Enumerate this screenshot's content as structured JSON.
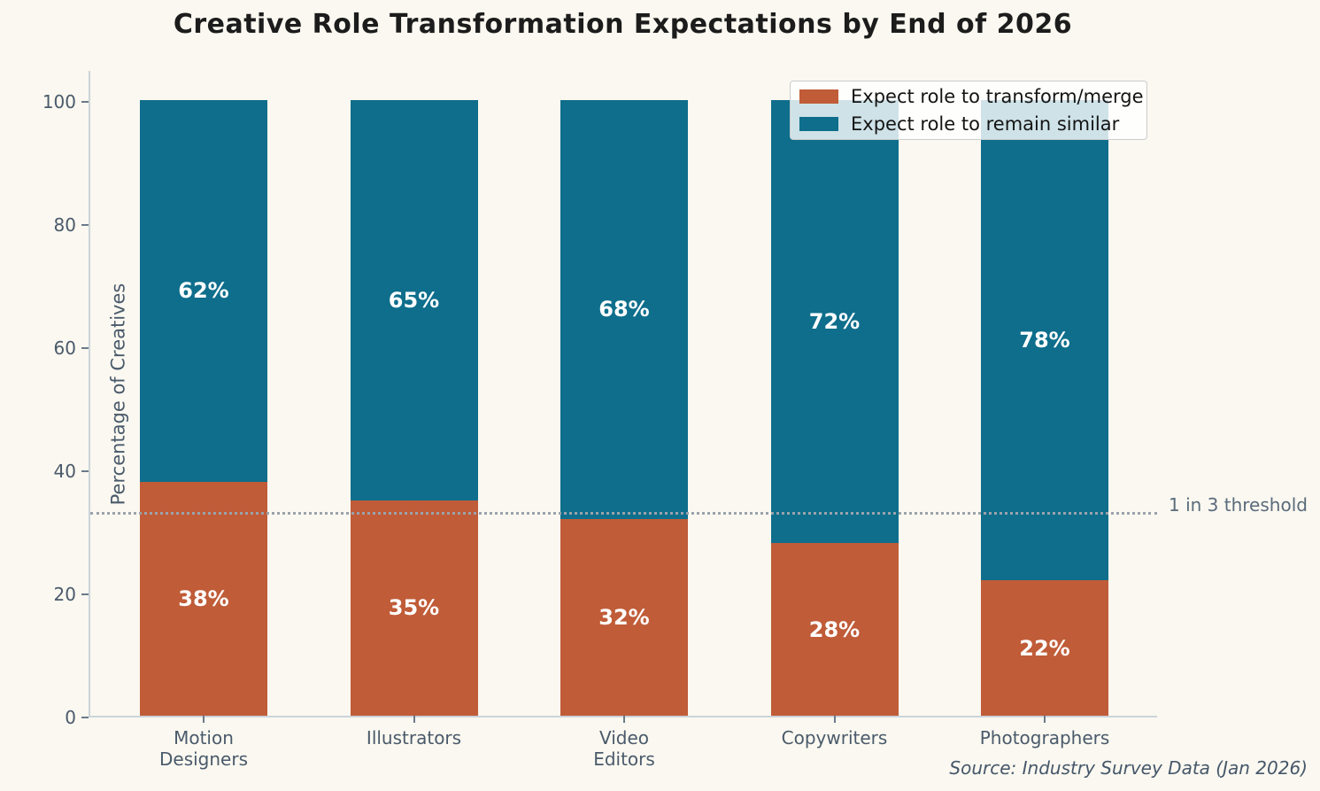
{
  "title": "Creative Role Transformation Expectations by End of 2026",
  "chart_data": {
    "type": "bar",
    "stacked": true,
    "title": "Creative Role Transformation Expectations by End of 2026",
    "categories": [
      "Motion\nDesigners",
      "Illustrators",
      "Video\nEditors",
      "Copywriters",
      "Photographers"
    ],
    "series": [
      {
        "name": "Expect role to transform/merge",
        "color": "#C05C38",
        "values": [
          38,
          35,
          32,
          28,
          22
        ]
      },
      {
        "name": "Expect role to remain similar",
        "color": "#0E6E8C",
        "values": [
          62,
          65,
          68,
          72,
          78
        ]
      }
    ],
    "bar_label_suffix": "%",
    "xlabel": "",
    "ylabel": "Percentage of Creatives",
    "ylim": [
      0,
      100
    ],
    "yticks": [
      0,
      20,
      40,
      60,
      80,
      100
    ],
    "grid": false,
    "legend_position": "upper right",
    "threshold": {
      "value": 33.33,
      "label": "1 in 3 threshold"
    },
    "source": "Source: Industry Survey Data (Jan 2026)"
  },
  "colors": {
    "background": "#FAF8F0",
    "transform_merge": "#C05C38",
    "remain_similar": "#0E6E8C",
    "axis_text": "#4A5A6B",
    "threshold_line": "#9BA3AB",
    "bar_label_text": "#FFFFFF",
    "title_text": "#1C1C1C"
  }
}
